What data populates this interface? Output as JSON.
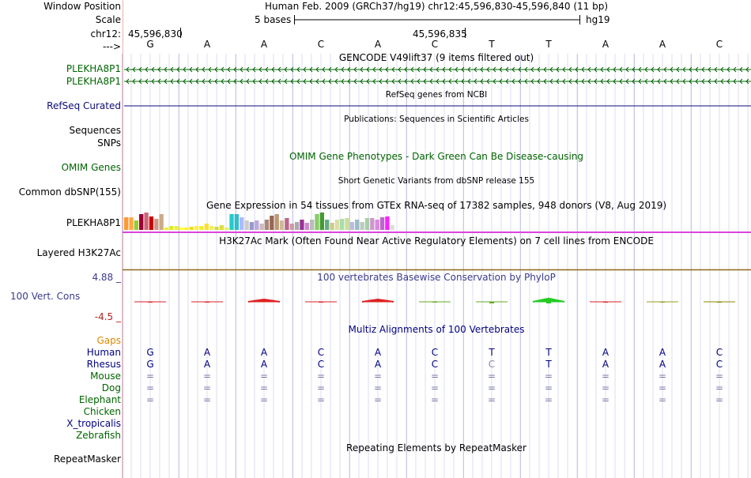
{
  "ruler": {
    "window_position_label": "Window Position",
    "scale_label": "Scale",
    "chrom_label": "chr12:",
    "arrow_label": "--->",
    "window_position_value": "Human Feb. 2009 (GRCh37/hg19)   chr12:45,596,830-45,596,840 (11 bp)",
    "scale_value": "5 bases",
    "assembly": "hg19",
    "pos_left": "45,596,830",
    "pos_mid": "45,596,835",
    "bases": [
      "G",
      "A",
      "A",
      "C",
      "A",
      "C",
      "T",
      "T",
      "A",
      "A",
      "C"
    ]
  },
  "gencode": {
    "title": "GENCODE V49lift37 (9 items filtered out)",
    "tracks": [
      "PLEKHA8P1",
      "PLEKHA8P1"
    ],
    "color": "#006400"
  },
  "refseq": {
    "label": "RefSeq Curated",
    "title": "RefSeq genes from NCBI",
    "color": "#0c0c78"
  },
  "publications": {
    "title": "Publications: Sequences in Scientific Articles",
    "labels": [
      "Sequences",
      "SNPs"
    ]
  },
  "omim": {
    "title": "OMIM Gene Phenotypes - Dark Green Can Be Disease-causing",
    "label": "OMIM Genes",
    "color": "#006400"
  },
  "dbsnp": {
    "title": "Short Genetic Variants from dbSNP release 155",
    "label": "Common dbSNP(155)"
  },
  "gtex": {
    "title": "Gene Expression in 54 tissues from GTEx RNA-seq of 17382 samples, 948 donors (V8, Aug 2019)",
    "label": "PLEKHA8P1",
    "values": [
      16,
      16,
      12,
      20,
      22,
      17,
      14,
      20,
      3,
      5,
      5,
      3,
      3,
      4,
      5,
      5,
      8,
      5,
      4,
      6,
      3,
      20,
      20,
      16,
      12,
      10,
      12,
      8,
      13,
      18,
      20,
      12,
      15,
      8,
      10,
      13,
      9,
      13,
      20,
      22,
      13,
      9,
      13,
      14,
      15,
      10,
      13,
      10,
      15,
      15,
      13,
      16,
      17,
      6
    ],
    "colors": [
      "#ff9933",
      "#ffaa44",
      "#99cc33",
      "#990033",
      "#cc6677",
      "#cc0000",
      "#cc9988",
      "#ccaa88",
      "#eeee22",
      "#ddee22",
      "#eeee44",
      "#ffff33",
      "#ffee22",
      "#eedd22",
      "#ffee44",
      "#eeee33",
      "#ffdd33",
      "#eeee66",
      "#ccdd44",
      "#dddd44",
      "#eeee55",
      "#22cccc",
      "#33bbcc",
      "#aabbff",
      "#cccccc",
      "#9999cc",
      "#bbaadd",
      "#ccbbbb",
      "#aa8877",
      "#996655",
      "#bb9977",
      "#ccbb99",
      "#bb6688",
      "#cc99aa",
      "#aaaaaa",
      "#993399",
      "#cc88cc",
      "#bbbbbb",
      "#88cc66",
      "#449933",
      "#66aa88",
      "#cccc88",
      "#ddddaa",
      "#aaddaa",
      "#ccdd99",
      "#bbbbdd",
      "#99bbcc",
      "#bbccbb",
      "#aaccaa",
      "#cc99cc",
      "#dd88dd",
      "#bb66cc",
      "#ff22ff",
      "#dddddd"
    ]
  },
  "h3k27ac": {
    "title": "H3K27Ac Mark (Often Found Near Active Regulatory Elements) on 7 cell lines from ENCODE",
    "label": "Layered H3K27Ac"
  },
  "phylop": {
    "title": "100 vertebrates Basewise Conservation by PhyloP",
    "label": "100 Vert. Cons",
    "max_label": "4.88 _",
    "min_label": "-4.5 _",
    "values": [
      -0.4,
      -0.4,
      1.2,
      -0.3,
      1.2,
      -0.2,
      -0.8,
      1.7,
      -0.3,
      -0.1,
      -0.2
    ],
    "colors": [
      "#dd2222",
      "#dd2222",
      "#dd2222",
      "#dd2222",
      "#dd2222",
      "#66aa22",
      "#66aa22",
      "#22cc22",
      "#dd2222",
      "#999922",
      "#888800"
    ]
  },
  "multiz": {
    "title": "Multiz Alignments of 100 Vertebrates",
    "gaps_label": "Gaps",
    "species": [
      {
        "name": "Human",
        "color": "#000080",
        "seq": [
          "G",
          "A",
          "A",
          "C",
          "A",
          "C",
          "T",
          "T",
          "A",
          "A",
          "C"
        ],
        "seq_color": "#000080"
      },
      {
        "name": "Rhesus",
        "color": "#000080",
        "seq": [
          "G",
          "A",
          "A",
          "C",
          "A",
          "C",
          "C",
          "T",
          "A",
          "A",
          "C"
        ],
        "seq_color": "#000080"
      },
      {
        "name": "Mouse",
        "color": "#006400",
        "seq": [
          "=",
          "=",
          "=",
          "=",
          "=",
          "=",
          "=",
          "=",
          "=",
          "=",
          "="
        ],
        "seq_color": "#7777aa"
      },
      {
        "name": "Dog",
        "color": "#006400",
        "seq": [
          "=",
          "=",
          "=",
          "=",
          "=",
          "=",
          "=",
          "=",
          "=",
          "=",
          "="
        ],
        "seq_color": "#7777aa"
      },
      {
        "name": "Elephant",
        "color": "#006400",
        "seq": [
          "=",
          "=",
          "=",
          "=",
          "=",
          "=",
          "=",
          "=",
          "=",
          "=",
          "="
        ],
        "seq_color": "#7777aa"
      },
      {
        "name": "Chicken",
        "color": "#006400",
        "seq": [],
        "seq_color": "#7777aa"
      },
      {
        "name": "X_tropicalis",
        "color": "#000080",
        "seq": [],
        "seq_color": "#7777aa"
      },
      {
        "name": "Zebrafish",
        "color": "#006400",
        "seq": [],
        "seq_color": "#7777aa"
      }
    ]
  },
  "repeatmasker": {
    "title": "Repeating Elements by RepeatMasker",
    "label": "RepeatMasker"
  },
  "colors": {
    "gaps": "#dd8800",
    "phylop_label": "#3b3b8c",
    "phylop_max": "#3b3b8c",
    "phylop_min": "#b22222",
    "h3k27ac_line": "#8b6914",
    "gtex_line": "#dd44dd"
  }
}
